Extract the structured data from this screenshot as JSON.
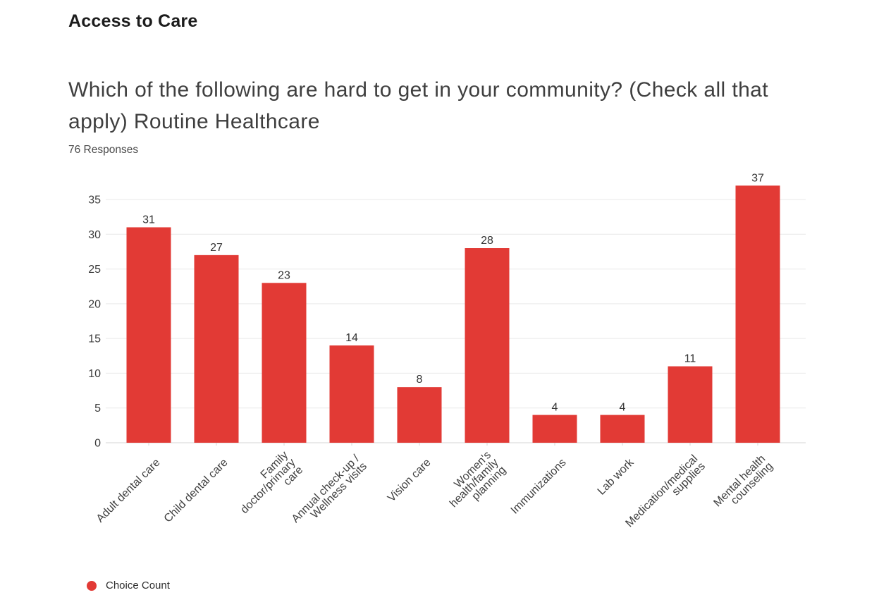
{
  "page": {
    "section_title": "Access to Care",
    "question": "Which of the following are hard to get in your community? (Check all that apply) Routine Healthcare",
    "responses_label": "76 Responses"
  },
  "chart_data": {
    "type": "bar",
    "title": "Which of the following are hard to get in your community? (Check all that apply) Routine Healthcare",
    "subtitle": "76 Responses",
    "series_name": "Choice Count",
    "categories": [
      "Adult dental care",
      "Child dental care",
      "Family doctor/primary care",
      "Annual check-up / Wellness visits",
      "Vision care",
      "Women's health/family planning",
      "Immunizations",
      "Lab work",
      "Medication/medical supplies",
      "Mental health counseling"
    ],
    "categories_wrapped": [
      [
        "Adult dental care"
      ],
      [
        "Child dental care"
      ],
      [
        "Family",
        "doctor/primary",
        "care"
      ],
      [
        "Annual check-up /",
        "Wellness visits"
      ],
      [
        "Vision care"
      ],
      [
        "Women's",
        "health/family",
        "planning"
      ],
      [
        "Immunizations"
      ],
      [
        "Lab work"
      ],
      [
        "Medication/medical",
        "supplies"
      ],
      [
        "Mental health",
        "counseling"
      ]
    ],
    "values": [
      31,
      27,
      23,
      14,
      8,
      28,
      4,
      4,
      11,
      37
    ],
    "y_ticks": [
      0,
      5,
      10,
      15,
      20,
      25,
      30,
      35
    ],
    "ylim": [
      0,
      37.5
    ],
    "xlabel": "",
    "ylabel": "",
    "grid": true,
    "bar_color": "#e23a35",
    "value_label_color": "#333333",
    "axis_label_color": "#3f3f3f",
    "gridline_color": "#e9e9e9",
    "baseline_color": "#d5d5d5",
    "legend": {
      "label": "Choice Count",
      "position": "bottom-left",
      "marker": "circle",
      "marker_color": "#e23a35"
    }
  }
}
